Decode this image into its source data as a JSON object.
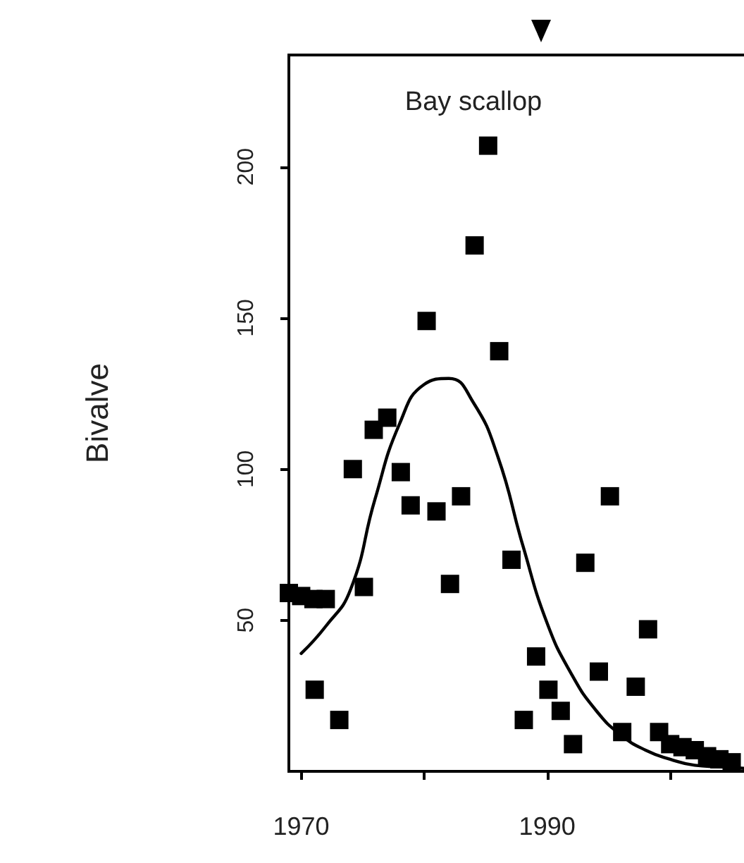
{
  "chart_data": {
    "type": "scatter",
    "title": "Bay scallop",
    "ylabel": "Bivalve",
    "xlim": [
      1969,
      2006
    ],
    "xticks": [
      1970,
      {
        "value": 1980,
        "label": null
      },
      1990,
      {
        "value": 2000,
        "label": null
      }
    ],
    "ylim": [
      0,
      237
    ],
    "yticks": [
      50,
      100,
      150,
      200
    ],
    "grid": false,
    "marker": "square",
    "series": [
      {
        "color": "#000000",
        "x": [
          1969,
          1970,
          1971,
          1972,
          1971.1,
          1973.1,
          1974.2,
          1975.1,
          1975.9,
          1977,
          1978.1,
          1978.9,
          1980.2,
          1981,
          1982.1,
          1983,
          1984.1,
          1985.2,
          1986.1,
          1987.1,
          1988.1,
          1989.1,
          1990.1,
          1991.1,
          1992.1,
          1993.1,
          1994.2,
          1995.1,
          1996.1,
          1997.2,
          1998.2,
          1999.1,
          2000,
          2001,
          2002,
          2003,
          2004,
          2005
        ],
        "values": [
          59,
          58,
          57,
          57,
          27,
          17,
          100,
          61,
          113,
          117,
          99,
          88,
          149,
          86,
          62,
          91,
          174,
          207,
          139,
          70,
          17,
          38,
          27,
          20,
          9,
          69,
          33,
          91,
          13,
          28,
          47,
          13,
          9,
          8,
          7,
          5,
          4,
          3
        ]
      },
      {
        "type": "line",
        "color": "#000000",
        "marker": "none",
        "line_style": "solid",
        "x": [
          1970,
          1972,
          1974,
          1976,
          1978,
          1980,
          1982,
          1984,
          1986,
          1988,
          1990,
          1992,
          1994,
          1996,
          1998,
          2000,
          2002,
          2004,
          2006
        ],
        "values": [
          39,
          48,
          60,
          90,
          115,
          128,
          130,
          122,
          104,
          75,
          49,
          32,
          20,
          12,
          7,
          4,
          2,
          1.5,
          1
        ]
      }
    ]
  }
}
